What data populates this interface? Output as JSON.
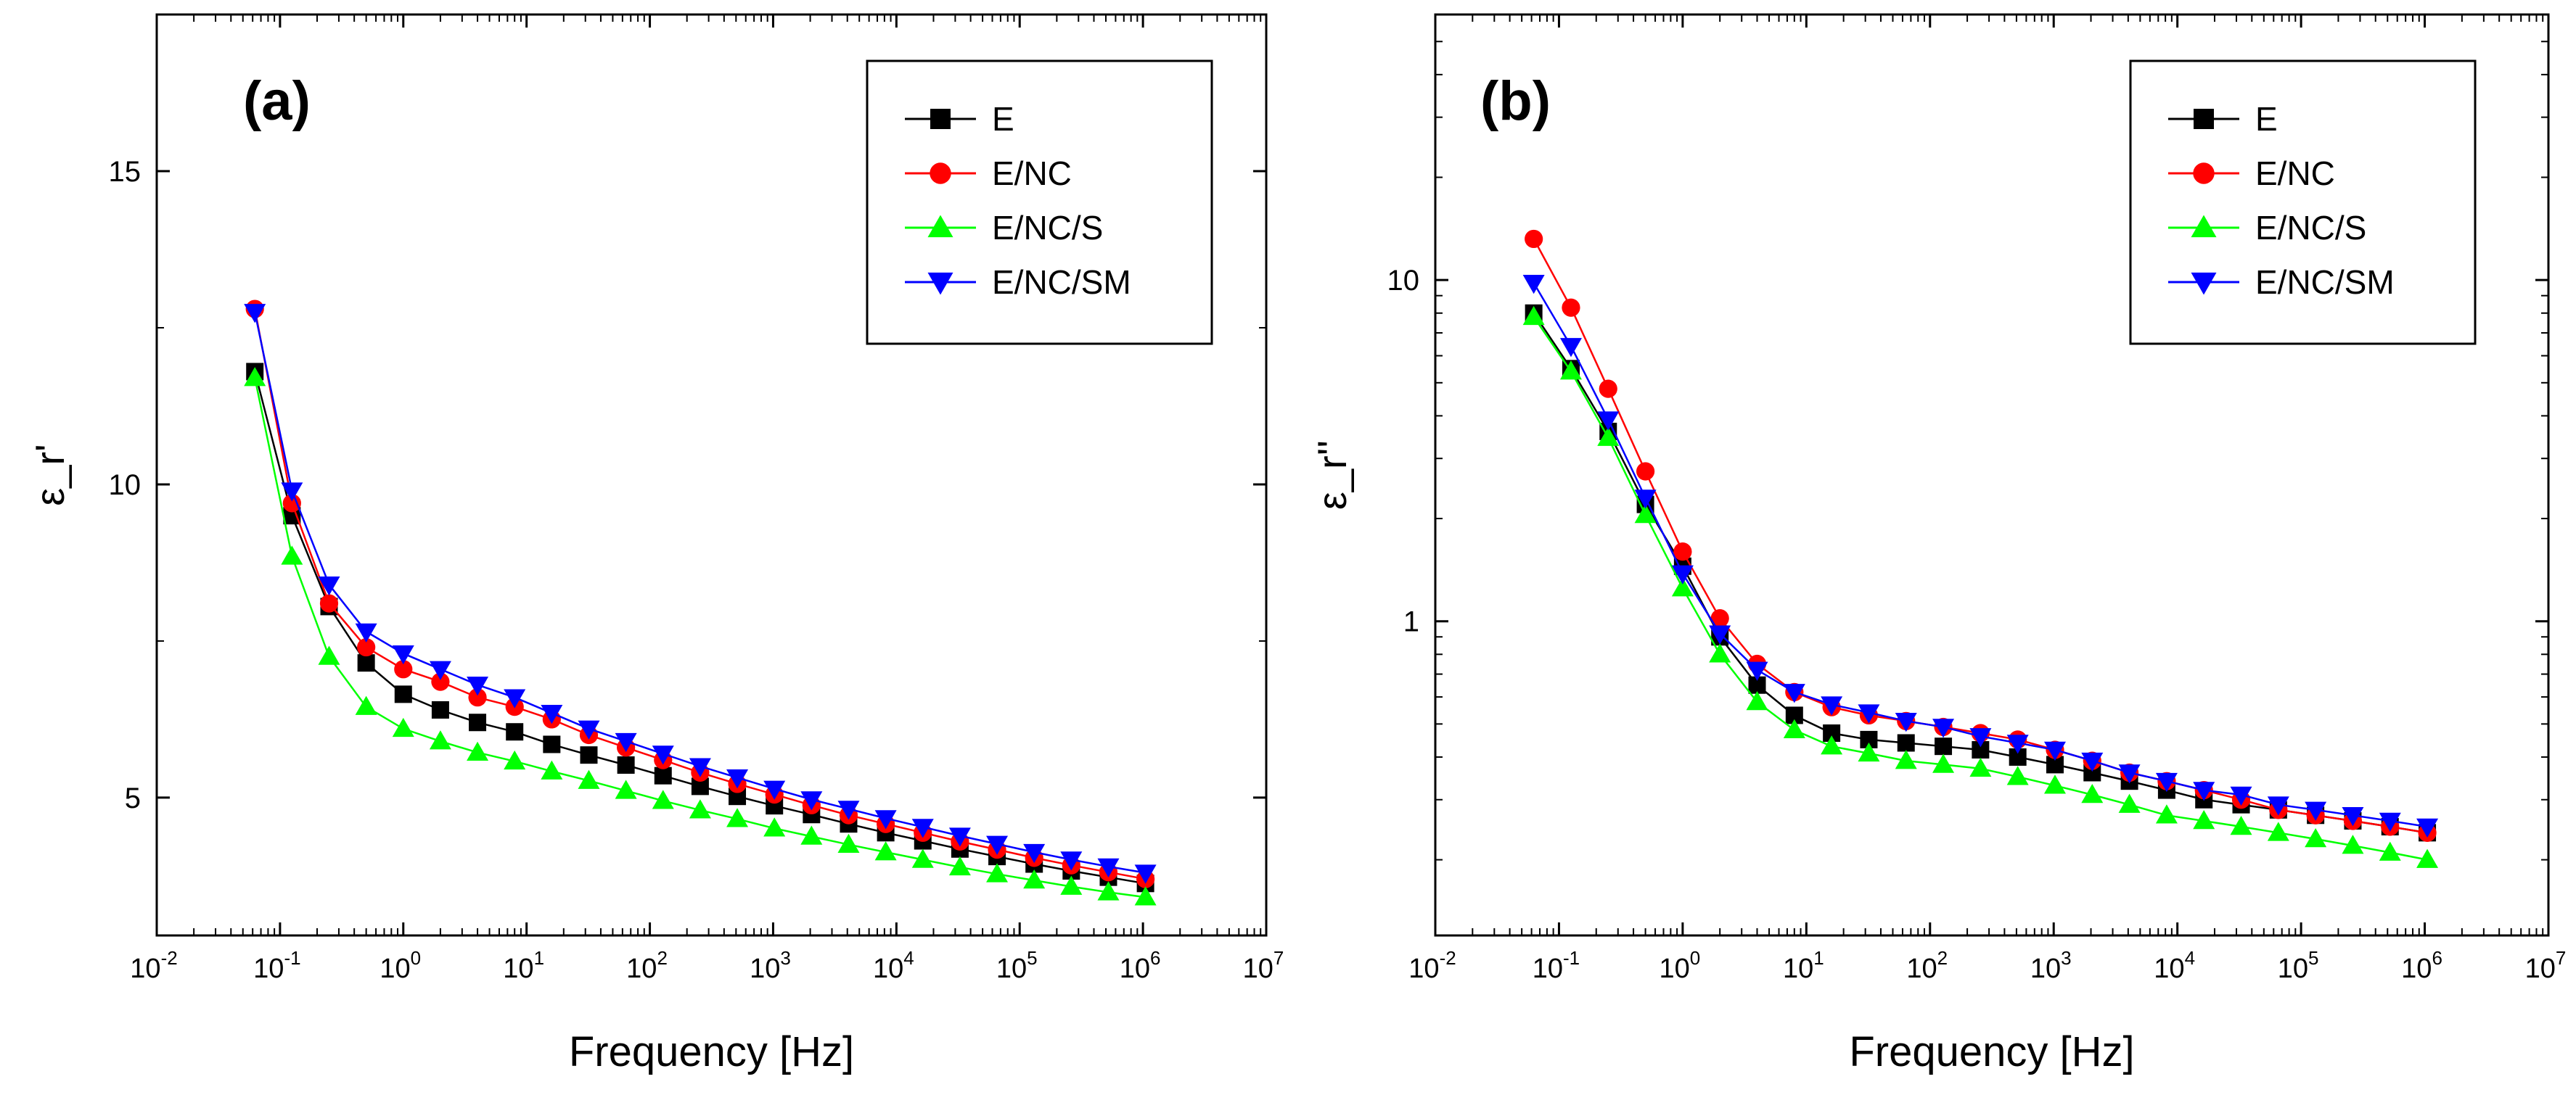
{
  "chart_data": [
    {
      "type": "line",
      "panel_label": "(a)",
      "xlabel": "Frequency [Hz]",
      "ylabel": "ε_r'",
      "x_scale": "log",
      "y_scale": "linear",
      "xlim": [
        0.01,
        10000000
      ],
      "ylim": [
        2.8,
        17.5
      ],
      "x_ticks": [
        {
          "base": "10",
          "exp": "-2"
        },
        {
          "base": "10",
          "exp": "-1"
        },
        {
          "base": "10",
          "exp": "0"
        },
        {
          "base": "10",
          "exp": "1"
        },
        {
          "base": "10",
          "exp": "2"
        },
        {
          "base": "10",
          "exp": "3"
        },
        {
          "base": "10",
          "exp": "4"
        },
        {
          "base": "10",
          "exp": "5"
        },
        {
          "base": "10",
          "exp": "6"
        },
        {
          "base": "10",
          "exp": "7"
        }
      ],
      "y_ticks": [
        {
          "v": 5,
          "label": "5"
        },
        {
          "v": 10,
          "label": "10"
        },
        {
          "v": 15,
          "label": "15"
        }
      ],
      "legend_position": "top-right",
      "grid": false,
      "x": [
        0.0625,
        0.125,
        0.25,
        0.5,
        1,
        2,
        4,
        8,
        16,
        32,
        64,
        128,
        256,
        512,
        1024,
        2048,
        4096,
        8192,
        16384,
        32768,
        65536,
        131072,
        262144,
        524288,
        1048576
      ],
      "series": [
        {
          "name": "E",
          "color": "#000000",
          "marker": "square",
          "values": [
            11.8,
            9.5,
            8.05,
            7.15,
            6.65,
            6.4,
            6.2,
            6.05,
            5.85,
            5.68,
            5.52,
            5.35,
            5.18,
            5.02,
            4.87,
            4.73,
            4.58,
            4.44,
            4.31,
            4.18,
            4.06,
            3.94,
            3.83,
            3.73,
            3.63
          ]
        },
        {
          "name": "E/NC",
          "color": "#ff0000",
          "marker": "circle",
          "values": [
            12.8,
            9.7,
            8.1,
            7.4,
            7.05,
            6.85,
            6.6,
            6.45,
            6.25,
            6.0,
            5.8,
            5.6,
            5.4,
            5.22,
            5.05,
            4.88,
            4.72,
            4.58,
            4.44,
            4.3,
            4.17,
            4.04,
            3.92,
            3.81,
            3.7
          ]
        },
        {
          "name": "E/NC/S",
          "color": "#00ff00",
          "marker": "triangle-up",
          "values": [
            11.7,
            8.85,
            7.25,
            6.45,
            6.1,
            5.9,
            5.72,
            5.58,
            5.42,
            5.27,
            5.11,
            4.95,
            4.8,
            4.66,
            4.51,
            4.38,
            4.25,
            4.13,
            4.01,
            3.89,
            3.78,
            3.68,
            3.58,
            3.49,
            3.41
          ]
        },
        {
          "name": "E/NC/SM",
          "color": "#0000ff",
          "marker": "triangle-down",
          "values": [
            12.75,
            9.9,
            8.4,
            7.65,
            7.3,
            7.05,
            6.8,
            6.6,
            6.35,
            6.1,
            5.9,
            5.7,
            5.5,
            5.32,
            5.14,
            4.97,
            4.82,
            4.67,
            4.53,
            4.39,
            4.26,
            4.13,
            4.01,
            3.9,
            3.8
          ]
        }
      ]
    },
    {
      "type": "line",
      "panel_label": "(b)",
      "xlabel": "Frequency [Hz]",
      "ylabel": "ε_r''",
      "x_scale": "log",
      "y_scale": "log",
      "xlim": [
        0.01,
        10000000
      ],
      "ylim": [
        0.12,
        60
      ],
      "x_ticks": [
        {
          "base": "10",
          "exp": "-2"
        },
        {
          "base": "10",
          "exp": "-1"
        },
        {
          "base": "10",
          "exp": "0"
        },
        {
          "base": "10",
          "exp": "1"
        },
        {
          "base": "10",
          "exp": "2"
        },
        {
          "base": "10",
          "exp": "3"
        },
        {
          "base": "10",
          "exp": "4"
        },
        {
          "base": "10",
          "exp": "5"
        },
        {
          "base": "10",
          "exp": "6"
        },
        {
          "base": "10",
          "exp": "7"
        }
      ],
      "y_ticks": [
        {
          "v": 1,
          "label": "1"
        },
        {
          "v": 10,
          "label": "10"
        }
      ],
      "legend_position": "top-right",
      "grid": false,
      "x": [
        0.0625,
        0.125,
        0.25,
        0.5,
        1,
        2,
        4,
        8,
        16,
        32,
        64,
        128,
        256,
        512,
        1024,
        2048,
        4096,
        8192,
        16384,
        32768,
        65536,
        131072,
        262144,
        524288,
        1048576
      ],
      "series": [
        {
          "name": "E",
          "color": "#000000",
          "marker": "square",
          "values": [
            8.0,
            5.5,
            3.6,
            2.2,
            1.45,
            0.9,
            0.65,
            0.53,
            0.47,
            0.45,
            0.44,
            0.43,
            0.42,
            0.4,
            0.38,
            0.36,
            0.34,
            0.32,
            0.3,
            0.29,
            0.28,
            0.27,
            0.26,
            0.25,
            0.24
          ]
        },
        {
          "name": "E/NC",
          "color": "#ff0000",
          "marker": "circle",
          "values": [
            13.2,
            8.3,
            4.8,
            2.75,
            1.6,
            1.02,
            0.75,
            0.62,
            0.56,
            0.53,
            0.51,
            0.49,
            0.47,
            0.45,
            0.42,
            0.39,
            0.36,
            0.34,
            0.32,
            0.3,
            0.28,
            0.27,
            0.26,
            0.25,
            0.24
          ]
        },
        {
          "name": "E/NC/S",
          "color": "#00ff00",
          "marker": "triangle-up",
          "values": [
            7.8,
            5.4,
            3.45,
            2.05,
            1.25,
            0.8,
            0.58,
            0.48,
            0.43,
            0.41,
            0.39,
            0.38,
            0.37,
            0.35,
            0.33,
            0.31,
            0.29,
            0.27,
            0.26,
            0.25,
            0.24,
            0.23,
            0.22,
            0.21,
            0.2
          ]
        },
        {
          "name": "E/NC/SM",
          "color": "#0000ff",
          "marker": "triangle-down",
          "values": [
            9.8,
            6.4,
            3.9,
            2.3,
            1.38,
            0.92,
            0.72,
            0.62,
            0.57,
            0.54,
            0.51,
            0.49,
            0.46,
            0.44,
            0.42,
            0.39,
            0.36,
            0.34,
            0.32,
            0.31,
            0.29,
            0.28,
            0.27,
            0.26,
            0.25
          ]
        }
      ]
    }
  ]
}
